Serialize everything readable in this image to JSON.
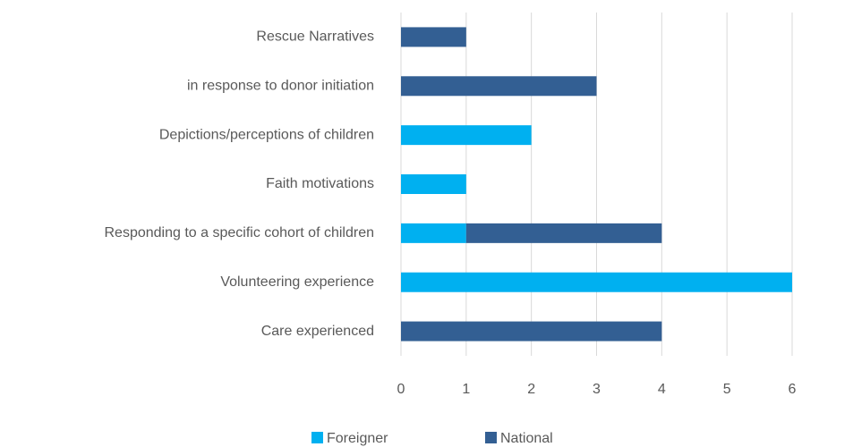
{
  "chart_data": {
    "type": "bar",
    "orientation": "horizontal",
    "stacked": true,
    "categories": [
      "Rescue Narratives",
      "in response to donor initiation",
      "Depictions/perceptions of children",
      "Faith motivations",
      "Responding to a specific cohort of children",
      "Volunteering experience",
      "Care experienced"
    ],
    "series": [
      {
        "name": "Foreigner",
        "color": "#00b0f0",
        "values": [
          0,
          0,
          2,
          1,
          1,
          6,
          0
        ]
      },
      {
        "name": "National",
        "color": "#335f93",
        "values": [
          1,
          3,
          0,
          0,
          3,
          0,
          4
        ]
      }
    ],
    "xlim": [
      0,
      6
    ],
    "xticks": [
      0,
      1,
      2,
      3,
      4,
      5,
      6
    ],
    "grid": true,
    "legend": "bottom"
  }
}
